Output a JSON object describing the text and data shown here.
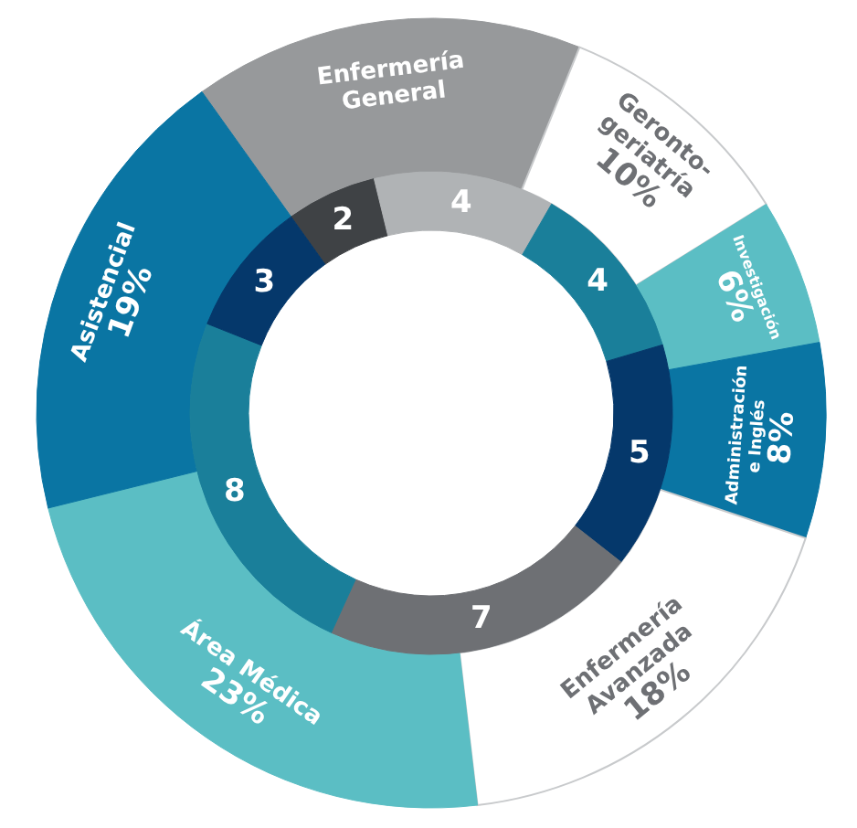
{
  "chart_data": {
    "type": "donut",
    "categories": [
      "Enfermería\nGeneral",
      "Geronto-\ngeriatría",
      "Investigación",
      "Administración\ne Inglés",
      "Enfermería\nAvanzada",
      "Área Médica",
      "Asistencial"
    ],
    "series": [
      {
        "values": [
          16,
          10,
          6,
          8,
          18,
          23,
          19
        ],
        "colors": [
          "#97999b",
          "#ffffff",
          "#5bbec4",
          "#0a75a3",
          "#ffffff",
          "#5bbec4",
          "#0a75a3"
        ],
        "value_labels": [
          null,
          "10%",
          "6%",
          "8%",
          "18%",
          "23%",
          "19%"
        ]
      },
      {
        "values": [
          2,
          4,
          4,
          5,
          7,
          8,
          3
        ],
        "colors": [
          "#3f4245",
          "#b0b3b5",
          "#1a7f9a",
          "#05386b",
          "#6e7074",
          "#1a7f9a",
          "#05386b"
        ],
        "value_labels": [
          "2",
          "4",
          "4",
          "5",
          "7",
          "8",
          "3"
        ]
      }
    ]
  }
}
